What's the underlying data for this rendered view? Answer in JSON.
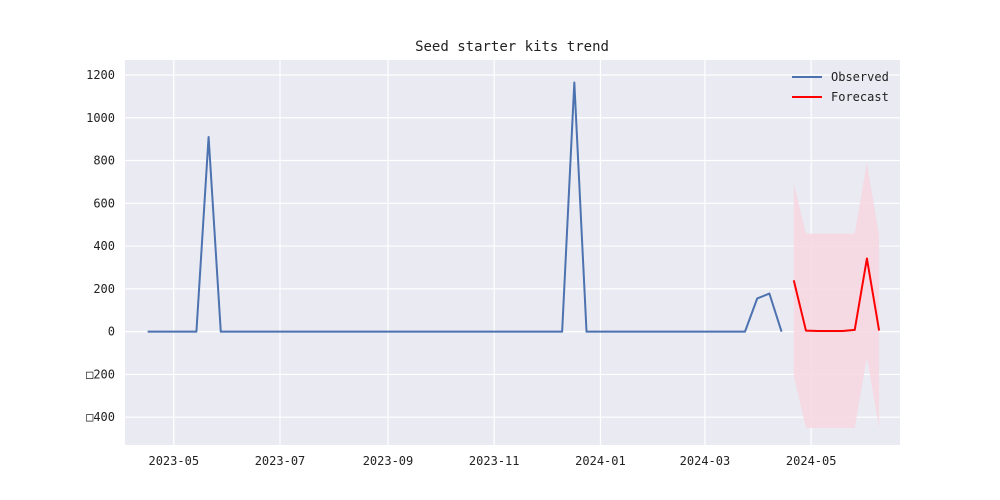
{
  "chart_data": {
    "type": "line",
    "title": "Seed starter kits trend",
    "xlabel": "",
    "ylabel": "",
    "x_axis_type": "date",
    "xlim": [
      "2023-04-03",
      "2024-06-21"
    ],
    "ylim": [
      -530,
      1270
    ],
    "grid": true,
    "legend_placement": "top-right",
    "background_color": "#eaeaf2",
    "grid_color": "#ffffff",
    "x_ticks": [
      {
        "value": "2023-05-01",
        "label": "2023-05"
      },
      {
        "value": "2023-07-01",
        "label": "2023-07"
      },
      {
        "value": "2023-09-01",
        "label": "2023-09"
      },
      {
        "value": "2023-11-01",
        "label": "2023-11"
      },
      {
        "value": "2024-01-01",
        "label": "2024-01"
      },
      {
        "value": "2024-03-01",
        "label": "2024-03"
      },
      {
        "value": "2024-05-01",
        "label": "2024-05"
      }
    ],
    "y_ticks": [
      {
        "value": 1200,
        "label": "1200"
      },
      {
        "value": 1000,
        "label": "1000"
      },
      {
        "value": 800,
        "label": "800"
      },
      {
        "value": 600,
        "label": "600"
      },
      {
        "value": 400,
        "label": "400"
      },
      {
        "value": 200,
        "label": "200"
      },
      {
        "value": 0,
        "label": "0"
      },
      {
        "value": -200,
        "label": "□200"
      },
      {
        "value": -400,
        "label": "□400"
      }
    ],
    "series": [
      {
        "name": "Observed",
        "color": "#4c72b0",
        "x": [
          "2023-04-16",
          "2023-04-23",
          "2023-04-30",
          "2023-05-07",
          "2023-05-14",
          "2023-05-21",
          "2023-05-28",
          "2023-06-04",
          "2023-06-11",
          "2023-06-18",
          "2023-06-25",
          "2023-07-02",
          "2023-07-09",
          "2023-07-16",
          "2023-07-23",
          "2023-07-30",
          "2023-08-06",
          "2023-08-13",
          "2023-08-20",
          "2023-08-27",
          "2023-09-03",
          "2023-09-10",
          "2023-09-17",
          "2023-09-24",
          "2023-10-01",
          "2023-10-08",
          "2023-10-15",
          "2023-10-22",
          "2023-10-29",
          "2023-11-05",
          "2023-11-12",
          "2023-11-19",
          "2023-11-26",
          "2023-12-03",
          "2023-12-10",
          "2023-12-17",
          "2023-12-24",
          "2023-12-31",
          "2024-01-07",
          "2024-01-14",
          "2024-01-21",
          "2024-01-28",
          "2024-02-04",
          "2024-02-11",
          "2024-02-18",
          "2024-02-25",
          "2024-03-03",
          "2024-03-10",
          "2024-03-17",
          "2024-03-24",
          "2024-03-31",
          "2024-04-07",
          "2024-04-14"
        ],
        "values": [
          0,
          0,
          0,
          0,
          0,
          910,
          0,
          0,
          0,
          0,
          0,
          0,
          0,
          0,
          0,
          0,
          0,
          0,
          0,
          0,
          0,
          0,
          0,
          0,
          0,
          0,
          0,
          0,
          0,
          0,
          0,
          0,
          0,
          0,
          0,
          1165,
          0,
          0,
          0,
          0,
          0,
          0,
          0,
          0,
          0,
          0,
          0,
          0,
          0,
          0,
          155,
          178,
          0
        ]
      },
      {
        "name": "Forecast",
        "color": "#ff0000",
        "x": [
          "2024-04-21",
          "2024-04-28",
          "2024-05-05",
          "2024-05-12",
          "2024-05-19",
          "2024-05-26",
          "2024-06-02",
          "2024-06-09"
        ],
        "values": [
          240,
          5,
          3,
          3,
          3,
          8,
          342,
          5
        ],
        "interval_color": "#f8d5df",
        "interval_lower": [
          -205,
          -450,
          -450,
          -450,
          -450,
          -450,
          -120,
          -450
        ],
        "interval_upper": [
          695,
          458,
          458,
          458,
          458,
          458,
          790,
          450
        ]
      }
    ]
  }
}
